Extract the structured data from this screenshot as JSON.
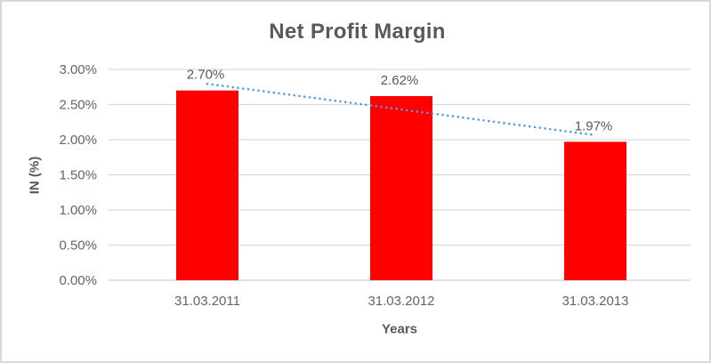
{
  "frame": {
    "background": "#ffffff",
    "border_color": "#d9d9d9"
  },
  "chart_data": {
    "type": "bar",
    "title": "Net Profit Margin",
    "categories": [
      "31.03.2011",
      "31.03.2012",
      "31.03.2013"
    ],
    "values": [
      2.7,
      2.62,
      1.97
    ],
    "data_labels": [
      "2.70%",
      "2.62%",
      "1.97%"
    ],
    "xlabel": "Years",
    "ylabel": "IN (%)",
    "ylim": [
      0,
      3.0
    ],
    "ytick_step": 0.5,
    "ytick_labels": [
      "0.00%",
      "0.50%",
      "1.00%",
      "1.50%",
      "2.00%",
      "2.50%",
      "3.00%"
    ],
    "grid": true,
    "legend": "none",
    "bar_color": "#ff0000",
    "gridline_color": "#d9d9d9",
    "axisline_color": "#d9d9d9",
    "text_color": "#595959",
    "tick_color": "#646464",
    "trendline": {
      "type": "linear",
      "style": "dotted",
      "color": "#5b9bd5"
    }
  }
}
